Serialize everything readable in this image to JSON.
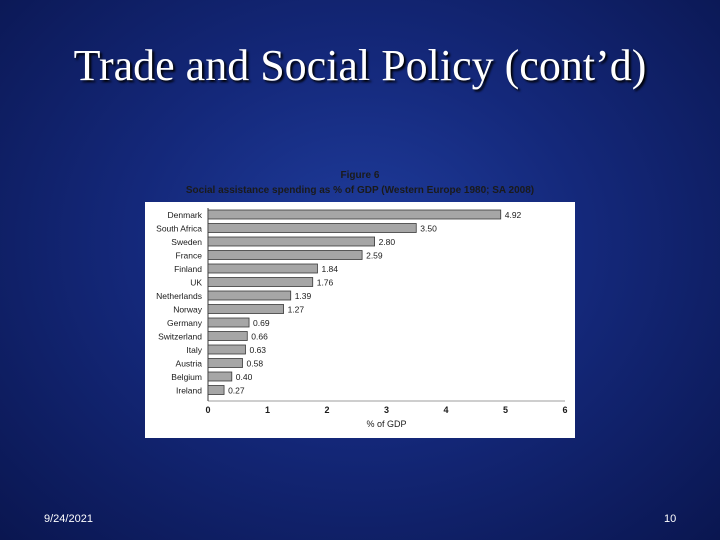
{
  "slide": {
    "title": "Trade and Social Policy (cont’d)",
    "date": "9/24/2021",
    "page_number": "10"
  },
  "chart_data": {
    "type": "bar",
    "orientation": "horizontal",
    "title": "Figure 6",
    "subtitle": "Social assistance spending as % of GDP (Western Europe 1980; SA 2008)",
    "xlabel": "% of GDP",
    "ylabel": "",
    "xlim": [
      0,
      6
    ],
    "xticks": [
      "0",
      "1",
      "2",
      "3",
      "4",
      "5",
      "6"
    ],
    "categories": [
      "Denmark",
      "South Africa",
      "Sweden",
      "France",
      "Finland",
      "UK",
      "Netherlands",
      "Norway",
      "Germany",
      "Switzerland",
      "Italy",
      "Austria",
      "Belgium",
      "Ireland"
    ],
    "values": [
      4.92,
      3.5,
      2.8,
      2.59,
      1.84,
      1.76,
      1.39,
      1.27,
      0.69,
      0.66,
      0.63,
      0.58,
      0.4,
      0.27
    ],
    "value_labels": [
      "4.92",
      "3.50",
      "2.80",
      "2.59",
      "1.84",
      "1.76",
      "1.39",
      "1.27",
      "0.69",
      "0.66",
      "0.63",
      "0.58",
      "0.40",
      "0.27"
    ],
    "colors": {
      "bar_fill": "#a6a6a6",
      "bar_stroke": "#3a3a3a",
      "text": "#1a1a1a"
    }
  }
}
